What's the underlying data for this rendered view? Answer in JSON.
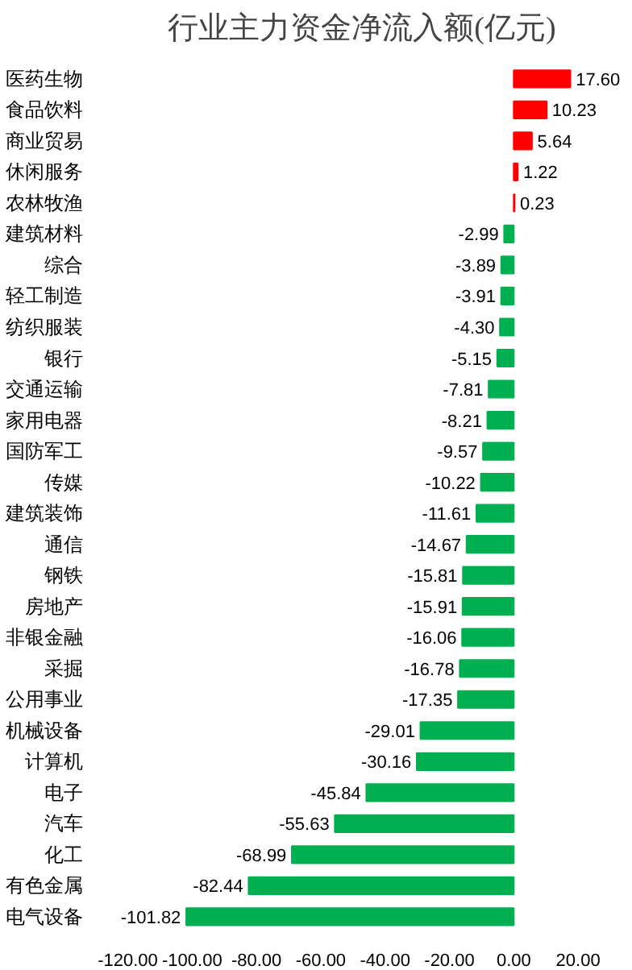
{
  "chart_data": {
    "type": "bar",
    "orientation": "horizontal",
    "title": "行业主力资金净流入额(亿元)",
    "categories": [
      "医药生物",
      "食品饮料",
      "商业贸易",
      "休闲服务",
      "农林牧渔",
      "建筑材料",
      "综合",
      "轻工制造",
      "纺织服装",
      "银行",
      "交通运输",
      "家用电器",
      "国防军工",
      "传媒",
      "建筑装饰",
      "通信",
      "钢铁",
      "房地产",
      "非银金融",
      "采掘",
      "公用事业",
      "机械设备",
      "计算机",
      "电子",
      "汽车",
      "化工",
      "有色金属",
      "电气设备"
    ],
    "values": [
      17.6,
      10.23,
      5.64,
      1.22,
      0.23,
      -2.99,
      -3.89,
      -3.91,
      -4.3,
      -5.15,
      -7.81,
      -8.21,
      -9.57,
      -10.22,
      -11.61,
      -14.67,
      -15.81,
      -15.91,
      -16.06,
      -16.78,
      -17.35,
      -29.01,
      -30.16,
      -45.84,
      -55.63,
      -68.99,
      -82.44,
      -101.82
    ],
    "value_labels": [
      "17.60",
      "10.23",
      "5.64",
      "1.22",
      "0.23",
      "-2.99",
      "-3.89",
      "-3.91",
      "-4.30",
      "-5.15",
      "-7.81",
      "-8.21",
      "-9.57",
      "-10.22",
      "-11.61",
      "-14.67",
      "-15.81",
      "-15.91",
      "-16.06",
      "-16.78",
      "-17.35",
      "-29.01",
      "-30.16",
      "-45.84",
      "-55.63",
      "-68.99",
      "-82.44",
      "-101.82"
    ],
    "colors": [
      "#ff0000",
      "#ff0000",
      "#ff0000",
      "#ff0000",
      "#ff0000",
      "#00b050",
      "#00b050",
      "#00b050",
      "#00b050",
      "#00b050",
      "#00b050",
      "#00b050",
      "#00b050",
      "#00b050",
      "#00b050",
      "#00b050",
      "#00b050",
      "#00b050",
      "#00b050",
      "#00b050",
      "#00b050",
      "#00b050",
      "#00b050",
      "#00b050",
      "#00b050",
      "#00b050",
      "#00b050",
      "#00b050"
    ],
    "xlim": [
      -120,
      20
    ],
    "xticks": [
      {
        "value": -120,
        "label": "-120.00"
      },
      {
        "value": -100,
        "label": "-100.00"
      },
      {
        "value": -80,
        "label": "-80.00"
      },
      {
        "value": -60,
        "label": "-60.00"
      },
      {
        "value": -40,
        "label": "-40.00"
      },
      {
        "value": -20,
        "label": "-20.00"
      },
      {
        "value": 0,
        "label": "0.00"
      },
      {
        "value": 20,
        "label": "20.00"
      }
    ],
    "grid": false
  }
}
